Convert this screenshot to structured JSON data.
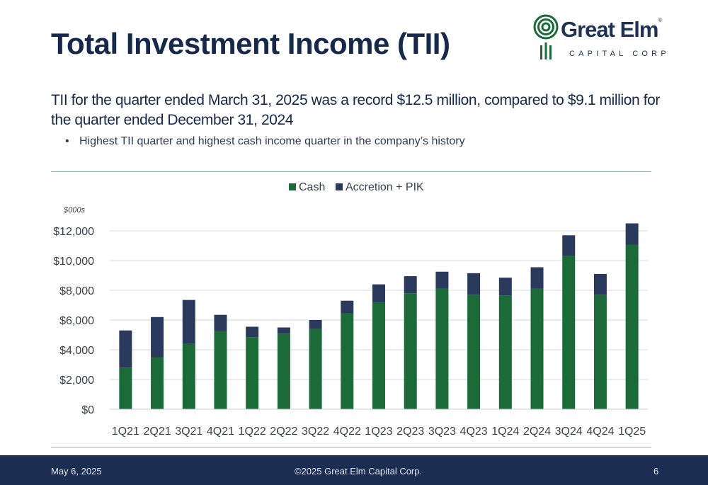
{
  "slide": {
    "title": "Total Investment Income (TII)",
    "subtitle": "TII for the quarter ended March 31, 2025 was a record $12.5 million, compared to $9.1 million for the quarter ended December 31, 2024",
    "bullets": [
      "Highest TII quarter and highest cash income quarter in the company’s history"
    ]
  },
  "logo": {
    "name": "Great Elm",
    "registered": "®",
    "subname": "CAPITAL CORP",
    "icon": "great-elm-tree-icon"
  },
  "footer": {
    "date": "May 6, 2025",
    "copyright": "©2025 Great Elm Capital Corp.",
    "page": "6"
  },
  "colors": {
    "cash": "#1a6b38",
    "accretion": "#2a3a5c",
    "title": "#15294d",
    "footer_bg": "#1c2d52",
    "rule": "#8fb8a8"
  },
  "chart_data": {
    "type": "bar",
    "stacked": true,
    "unit_label": "$000s",
    "categories": [
      "1Q21",
      "2Q21",
      "3Q21",
      "4Q21",
      "1Q22",
      "2Q22",
      "3Q22",
      "4Q22",
      "1Q23",
      "2Q23",
      "3Q23",
      "4Q23",
      "1Q24",
      "2Q24",
      "3Q24",
      "4Q24",
      "1Q25"
    ],
    "series": [
      {
        "name": "Cash",
        "color": "#1a6b38",
        "values": [
          2800,
          3500,
          4400,
          5250,
          4850,
          5100,
          5400,
          6450,
          7150,
          7800,
          8100,
          7700,
          7650,
          8100,
          10300,
          7700,
          11050
        ]
      },
      {
        "name": "Accretion + PIK",
        "color": "#2a3a5c",
        "values": [
          2500,
          2700,
          2950,
          1100,
          700,
          400,
          600,
          850,
          1250,
          1150,
          1150,
          1450,
          1200,
          1450,
          1400,
          1400,
          1450
        ]
      }
    ],
    "ylim": [
      0,
      12000
    ],
    "yticks": [
      0,
      2000,
      4000,
      6000,
      8000,
      10000,
      12000
    ],
    "ytick_labels": [
      "$0",
      "$2,000",
      "$4,000",
      "$6,000",
      "$8,000",
      "$10,000",
      "$12,000"
    ],
    "grid": true,
    "legend_position": "top-center"
  }
}
